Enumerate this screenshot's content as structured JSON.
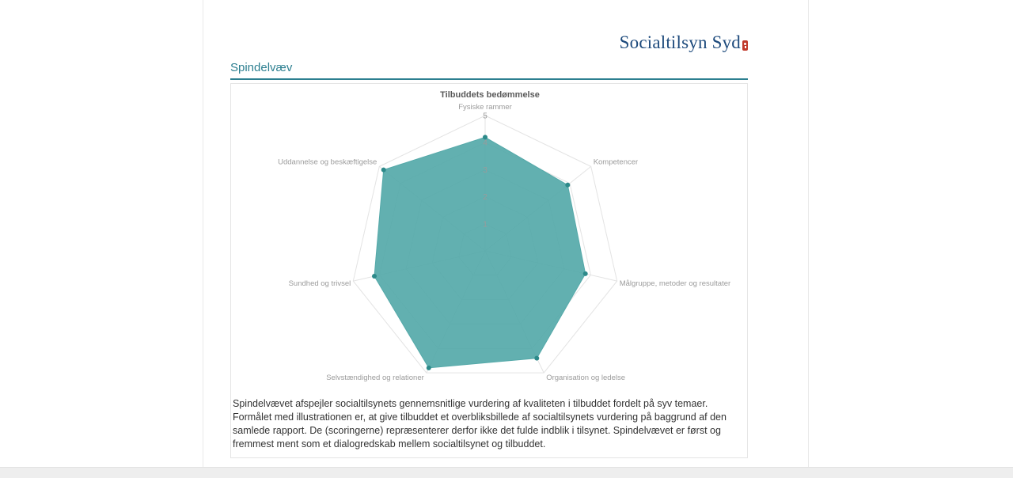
{
  "page": {
    "logo_text": "Socialtilsyn Syd",
    "logo_color": "#1d4a7c",
    "logo_badge_color": "#c0392b",
    "heading": "Spindelvæv",
    "accent_color": "#2c7f90",
    "description": "Spindelvævet afspejler socialtilsynets gennemsnitlige vurdering af kvaliteten i tilbuddet fordelt på syv temaer. Formålet med illustrationen er, at give tilbuddet et overbliksbillede af socialtilsynets vurdering på baggrund af den samlede rapport. De (scoringerne) repræsenterer derfor ikke det fulde indblik i tilsynet. Spindelvævet er først og fremmest ment som et dialogredskab mellem socialtilsynet og tilbuddet."
  },
  "chart_data": {
    "type": "radar",
    "title": "Tilbuddets bedømmelse",
    "categories": [
      "Fysiske rammer",
      "Kompetencer",
      "Målgruppe, metoder og resultater",
      "Organisation og ledelse",
      "Selvstændighed og relationer",
      "Sundhed og trivsel",
      "Uddannelse og beskæftigelse"
    ],
    "values": [
      4.2,
      3.9,
      3.8,
      4.4,
      4.8,
      4.2,
      4.8
    ],
    "scale": {
      "min": 0,
      "max": 5,
      "ticks": [
        1,
        2,
        3,
        4,
        5
      ]
    },
    "grid": true,
    "legend_position": "none",
    "fill_color": "#55a9a9",
    "fill_opacity": 0.92,
    "point_color": "#2d8a8a",
    "grid_color": "#e3e3e3",
    "tick_color": "#9b9b9b",
    "label_color": "#9b9b9b",
    "title_color": "#595959"
  }
}
